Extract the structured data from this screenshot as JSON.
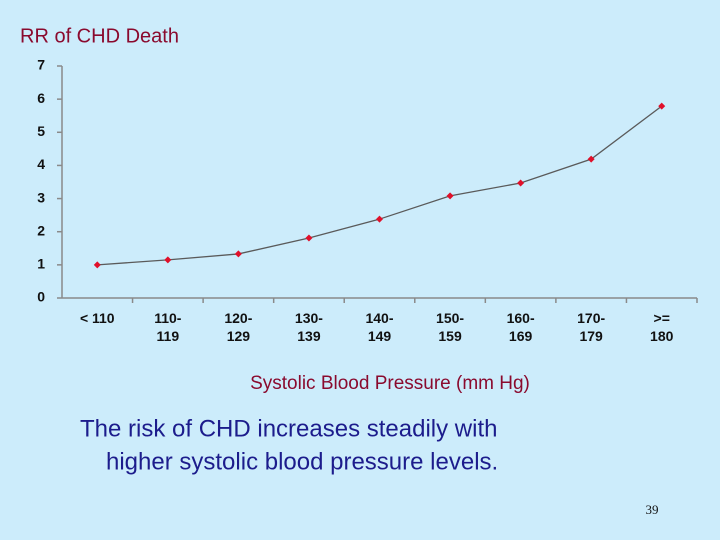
{
  "chart_data": {
    "type": "line",
    "title": "RR of CHD Death",
    "x_label": "Systolic Blood Pressure (mm Hg)",
    "categories": [
      "< 110",
      "110-\n119",
      "120-\n129",
      "130-\n139",
      "140-\n149",
      "150-\n159",
      "160-\n169",
      "170-\n179",
      ">=\n180"
    ],
    "values": [
      1.0,
      1.15,
      1.33,
      1.81,
      2.38,
      3.08,
      3.47,
      4.19,
      5.79
    ],
    "color": "#e0102a",
    "line_color": "#5a5a5a",
    "ylim": [
      0,
      7
    ],
    "yticks": [
      0,
      1,
      2,
      3,
      4,
      5,
      6,
      7
    ],
    "grid": false
  },
  "caption": [
    "The risk of CHD increases steadily with",
    "higher systolic blood pressure levels."
  ],
  "page_number": "39"
}
